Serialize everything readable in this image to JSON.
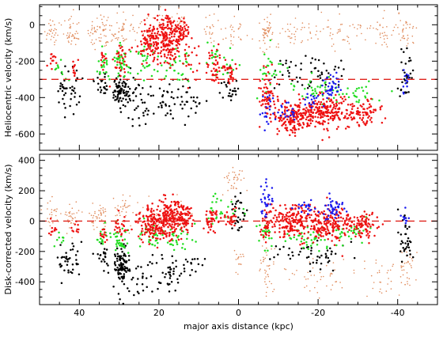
{
  "chart_data": [
    {
      "type": "scatter",
      "panel": "top",
      "title": "",
      "xlabel": "",
      "ylabel": "Heliocentric velocity (km/s)",
      "xlim": [
        50,
        -50
      ],
      "ylim": [
        -690,
        110
      ],
      "x_reversed": true,
      "yticks": [
        0,
        -200,
        -400,
        -600
      ],
      "xticks": [
        40,
        20,
        0,
        -20,
        -40
      ],
      "reference_line": {
        "y": -300,
        "style": "dashed",
        "color": "#e0231c"
      },
      "series": [
        {
          "color": "#e08a5a",
          "clusters": [
            {
              "x": 47,
              "y": -40,
              "n": 30,
              "sx": 1.0,
              "sy": 45
            },
            {
              "x": 42,
              "y": -40,
              "n": 40,
              "sx": 1.0,
              "sy": 45
            },
            {
              "x": 36.5,
              "y": -40,
              "n": 25,
              "sx": 0.7,
              "sy": 45
            },
            {
              "x": 34,
              "y": -40,
              "n": 30,
              "sx": 0.7,
              "sy": 45
            },
            {
              "x": 29.5,
              "y": -40,
              "n": 45,
              "sx": 1.2,
              "sy": 50
            },
            {
              "x": 22,
              "y": -30,
              "n": 35,
              "sx": 2.5,
              "sy": 55
            },
            {
              "x": 15,
              "y": 10,
              "n": 25,
              "sx": 1.5,
              "sy": 45
            },
            {
              "x": 7,
              "y": -40,
              "n": 20,
              "sx": 1.0,
              "sy": 45
            },
            {
              "x": 1,
              "y": -40,
              "n": 25,
              "sx": 1.5,
              "sy": 40
            },
            {
              "x": -7,
              "y": -40,
              "n": 45,
              "sx": 0.8,
              "sy": 60
            },
            {
              "x": -14,
              "y": -40,
              "n": 40,
              "sx": 3.0,
              "sy": 40
            },
            {
              "x": -26,
              "y": -40,
              "n": 45,
              "sx": 3.5,
              "sy": 40
            },
            {
              "x": -36,
              "y": -40,
              "n": 30,
              "sx": 1.5,
              "sy": 40
            },
            {
              "x": -42,
              "y": -40,
              "n": 35,
              "sx": 1.3,
              "sy": 45
            }
          ]
        },
        {
          "color": "#000000",
          "clusters": [
            {
              "x": 44,
              "y": -360,
              "n": 20,
              "sx": 0.8,
              "sy": 60
            },
            {
              "x": 41.5,
              "y": -350,
              "n": 22,
              "sx": 1.0,
              "sy": 60
            },
            {
              "x": 34,
              "y": -340,
              "n": 25,
              "sx": 1.0,
              "sy": 40
            },
            {
              "x": 29.5,
              "y": -360,
              "n": 75,
              "sx": 1.0,
              "sy": 45
            },
            {
              "x": 25,
              "y": -420,
              "n": 45,
              "sx": 2.5,
              "sy": 70
            },
            {
              "x": 18,
              "y": -430,
              "n": 35,
              "sx": 2.0,
              "sy": 60
            },
            {
              "x": 12,
              "y": -410,
              "n": 20,
              "sx": 1.5,
              "sy": 60
            },
            {
              "x": 2,
              "y": -330,
              "n": 25,
              "sx": 1.5,
              "sy": 50
            },
            {
              "x": -13,
              "y": -250,
              "n": 25,
              "sx": 3.0,
              "sy": 45
            },
            {
              "x": -22,
              "y": -270,
              "n": 30,
              "sx": 3.0,
              "sy": 50
            },
            {
              "x": -42,
              "y": -270,
              "n": 30,
              "sx": 0.8,
              "sy": 80
            }
          ]
        },
        {
          "color": "#22dd22",
          "clusters": [
            {
              "x": 45,
              "y": -240,
              "n": 10,
              "sx": 0.8,
              "sy": 30
            },
            {
              "x": 33.5,
              "y": -230,
              "n": 20,
              "sx": 0.8,
              "sy": 40
            },
            {
              "x": 29.5,
              "y": -200,
              "n": 40,
              "sx": 1.0,
              "sy": 45
            },
            {
              "x": 22,
              "y": -210,
              "n": 30,
              "sx": 2.0,
              "sy": 50
            },
            {
              "x": 15,
              "y": -220,
              "n": 30,
              "sx": 2.0,
              "sy": 55
            },
            {
              "x": 6,
              "y": -160,
              "n": 15,
              "sx": 1.0,
              "sy": 60
            },
            {
              "x": 2,
              "y": -220,
              "n": 12,
              "sx": 1.5,
              "sy": 40
            },
            {
              "x": -8,
              "y": -250,
              "n": 25,
              "sx": 1.5,
              "sy": 50
            },
            {
              "x": -20,
              "y": -350,
              "n": 40,
              "sx": 3.0,
              "sy": 40
            },
            {
              "x": -30,
              "y": -370,
              "n": 25,
              "sx": 3.0,
              "sy": 30
            }
          ]
        },
        {
          "color": "#ee1111",
          "clusters": [
            {
              "x": 47,
              "y": -190,
              "n": 12,
              "sx": 0.6,
              "sy": 30
            },
            {
              "x": 41,
              "y": -240,
              "n": 12,
              "sx": 0.5,
              "sy": 25
            },
            {
              "x": 34,
              "y": -190,
              "n": 12,
              "sx": 0.6,
              "sy": 25
            },
            {
              "x": 29.5,
              "y": -200,
              "n": 30,
              "sx": 1.0,
              "sy": 55
            },
            {
              "x": 22,
              "y": -100,
              "n": 110,
              "sx": 1.5,
              "sy": 60
            },
            {
              "x": 18,
              "y": -80,
              "n": 140,
              "sx": 1.5,
              "sy": 70
            },
            {
              "x": 15,
              "y": -40,
              "n": 70,
              "sx": 1.2,
              "sy": 45
            },
            {
              "x": 12,
              "y": -220,
              "n": 20,
              "sx": 1.5,
              "sy": 50
            },
            {
              "x": 6,
              "y": -230,
              "n": 45,
              "sx": 1.0,
              "sy": 55
            },
            {
              "x": 2,
              "y": -280,
              "n": 25,
              "sx": 0.8,
              "sy": 35
            },
            {
              "x": -7,
              "y": -380,
              "n": 60,
              "sx": 1.0,
              "sy": 70
            },
            {
              "x": -14,
              "y": -510,
              "n": 170,
              "sx": 2.5,
              "sy": 45
            },
            {
              "x": -22,
              "y": -480,
              "n": 200,
              "sx": 3.0,
              "sy": 45
            },
            {
              "x": -31,
              "y": -480,
              "n": 80,
              "sx": 2.0,
              "sy": 35
            }
          ]
        },
        {
          "color": "#1a1aee",
          "clusters": [
            {
              "x": -7,
              "y": -440,
              "n": 20,
              "sx": 0.8,
              "sy": 70
            },
            {
              "x": -13,
              "y": -480,
              "n": 20,
              "sx": 1.5,
              "sy": 30
            },
            {
              "x": -18,
              "y": -420,
              "n": 15,
              "sx": 1.0,
              "sy": 20
            },
            {
              "x": -23,
              "y": -340,
              "n": 40,
              "sx": 1.5,
              "sy": 40
            },
            {
              "x": -42,
              "y": -320,
              "n": 12,
              "sx": 0.5,
              "sy": 40
            }
          ]
        }
      ]
    },
    {
      "type": "scatter",
      "panel": "bottom",
      "title": "",
      "xlabel": "major axis distance (kpc)",
      "ylabel": "Disk-corrected velocity (km/s)",
      "xlim": [
        50,
        -50
      ],
      "ylim": [
        -550,
        440
      ],
      "x_reversed": true,
      "yticks": [
        400,
        200,
        0,
        -200,
        -400
      ],
      "xticks": [
        40,
        20,
        0,
        -20,
        -40
      ],
      "reference_line": {
        "y": 0,
        "style": "dashed",
        "color": "#e0231c"
      },
      "series": [
        {
          "color": "#e08a5a",
          "clusters": [
            {
              "x": 47,
              "y": 40,
              "n": 25,
              "sx": 1.0,
              "sy": 45
            },
            {
              "x": 42,
              "y": 40,
              "n": 30,
              "sx": 1.0,
              "sy": 45
            },
            {
              "x": 36,
              "y": 40,
              "n": 20,
              "sx": 0.7,
              "sy": 40
            },
            {
              "x": 34,
              "y": 40,
              "n": 20,
              "sx": 0.7,
              "sy": 40
            },
            {
              "x": 29,
              "y": 80,
              "n": 30,
              "sx": 1.2,
              "sy": 60
            },
            {
              "x": 22,
              "y": 40,
              "n": 30,
              "sx": 2.5,
              "sy": 60
            },
            {
              "x": 15,
              "y": 60,
              "n": 25,
              "sx": 1.5,
              "sy": 50
            },
            {
              "x": 1,
              "y": 260,
              "n": 35,
              "sx": 1.5,
              "sy": 40
            },
            {
              "x": 0,
              "y": -250,
              "n": 15,
              "sx": 0.8,
              "sy": 40
            },
            {
              "x": -7,
              "y": -300,
              "n": 40,
              "sx": 0.8,
              "sy": 80
            },
            {
              "x": -20,
              "y": -380,
              "n": 45,
              "sx": 5.0,
              "sy": 60
            },
            {
              "x": -36,
              "y": -350,
              "n": 25,
              "sx": 2.0,
              "sy": 60
            },
            {
              "x": -42,
              "y": -300,
              "n": 40,
              "sx": 1.3,
              "sy": 90
            }
          ]
        },
        {
          "color": "#000000",
          "clusters": [
            {
              "x": 44,
              "y": -250,
              "n": 18,
              "sx": 0.8,
              "sy": 50
            },
            {
              "x": 41.5,
              "y": -260,
              "n": 20,
              "sx": 1.0,
              "sy": 50
            },
            {
              "x": 34,
              "y": -230,
              "n": 20,
              "sx": 1.0,
              "sy": 40
            },
            {
              "x": 29.5,
              "y": -290,
              "n": 90,
              "sx": 1.0,
              "sy": 45
            },
            {
              "x": 25,
              "y": -370,
              "n": 40,
              "sx": 2.5,
              "sy": 70
            },
            {
              "x": 18,
              "y": -340,
              "n": 35,
              "sx": 2.0,
              "sy": 60
            },
            {
              "x": 12,
              "y": -260,
              "n": 15,
              "sx": 1.5,
              "sy": 50
            },
            {
              "x": 0,
              "y": 50,
              "n": 30,
              "sx": 1.2,
              "sy": 70
            },
            {
              "x": -13,
              "y": -200,
              "n": 20,
              "sx": 2.5,
              "sy": 45
            },
            {
              "x": -22,
              "y": -220,
              "n": 30,
              "sx": 3.0,
              "sy": 50
            },
            {
              "x": -42,
              "y": -120,
              "n": 35,
              "sx": 0.8,
              "sy": 100
            }
          ]
        },
        {
          "color": "#22dd22",
          "clusters": [
            {
              "x": 45,
              "y": -130,
              "n": 8,
              "sx": 0.8,
              "sy": 30
            },
            {
              "x": 34,
              "y": -110,
              "n": 15,
              "sx": 0.8,
              "sy": 40
            },
            {
              "x": 29.5,
              "y": -140,
              "n": 35,
              "sx": 1.0,
              "sy": 45
            },
            {
              "x": 22,
              "y": -110,
              "n": 30,
              "sx": 2.0,
              "sy": 40
            },
            {
              "x": 15,
              "y": -120,
              "n": 30,
              "sx": 2.0,
              "sy": 40
            },
            {
              "x": 6,
              "y": 90,
              "n": 15,
              "sx": 1.0,
              "sy": 50
            },
            {
              "x": 1,
              "y": 60,
              "n": 10,
              "sx": 1.5,
              "sy": 40
            },
            {
              "x": -7,
              "y": -100,
              "n": 20,
              "sx": 1.0,
              "sy": 50
            },
            {
              "x": -18,
              "y": -120,
              "n": 40,
              "sx": 3.5,
              "sy": 40
            },
            {
              "x": -28,
              "y": -60,
              "n": 30,
              "sx": 3.0,
              "sy": 35
            }
          ]
        },
        {
          "color": "#ee1111",
          "clusters": [
            {
              "x": 47,
              "y": -60,
              "n": 10,
              "sx": 0.6,
              "sy": 25
            },
            {
              "x": 41,
              "y": -60,
              "n": 10,
              "sx": 0.5,
              "sy": 25
            },
            {
              "x": 34,
              "y": -90,
              "n": 12,
              "sx": 0.6,
              "sy": 25
            },
            {
              "x": 29.5,
              "y": -30,
              "n": 25,
              "sx": 1.0,
              "sy": 50
            },
            {
              "x": 22,
              "y": -20,
              "n": 120,
              "sx": 1.5,
              "sy": 60
            },
            {
              "x": 18,
              "y": 10,
              "n": 160,
              "sx": 1.5,
              "sy": 60
            },
            {
              "x": 14,
              "y": 20,
              "n": 90,
              "sx": 1.3,
              "sy": 50
            },
            {
              "x": 7,
              "y": 10,
              "n": 40,
              "sx": 1.0,
              "sy": 40
            },
            {
              "x": 2,
              "y": 20,
              "n": 25,
              "sx": 0.8,
              "sy": 30
            },
            {
              "x": -7,
              "y": -20,
              "n": 40,
              "sx": 1.0,
              "sy": 60
            },
            {
              "x": -13,
              "y": 0,
              "n": 160,
              "sx": 2.5,
              "sy": 55
            },
            {
              "x": -22,
              "y": -20,
              "n": 180,
              "sx": 3.0,
              "sy": 60
            },
            {
              "x": -31,
              "y": -30,
              "n": 90,
              "sx": 2.0,
              "sy": 40
            }
          ]
        },
        {
          "color": "#1a1aee",
          "clusters": [
            {
              "x": -7,
              "y": 130,
              "n": 30,
              "sx": 0.8,
              "sy": 60
            },
            {
              "x": -17,
              "y": 100,
              "n": 20,
              "sx": 1.0,
              "sy": 20
            },
            {
              "x": -24,
              "y": 80,
              "n": 45,
              "sx": 1.5,
              "sy": 45
            },
            {
              "x": -42,
              "y": 10,
              "n": 10,
              "sx": 0.5,
              "sy": 30
            }
          ]
        }
      ]
    }
  ]
}
